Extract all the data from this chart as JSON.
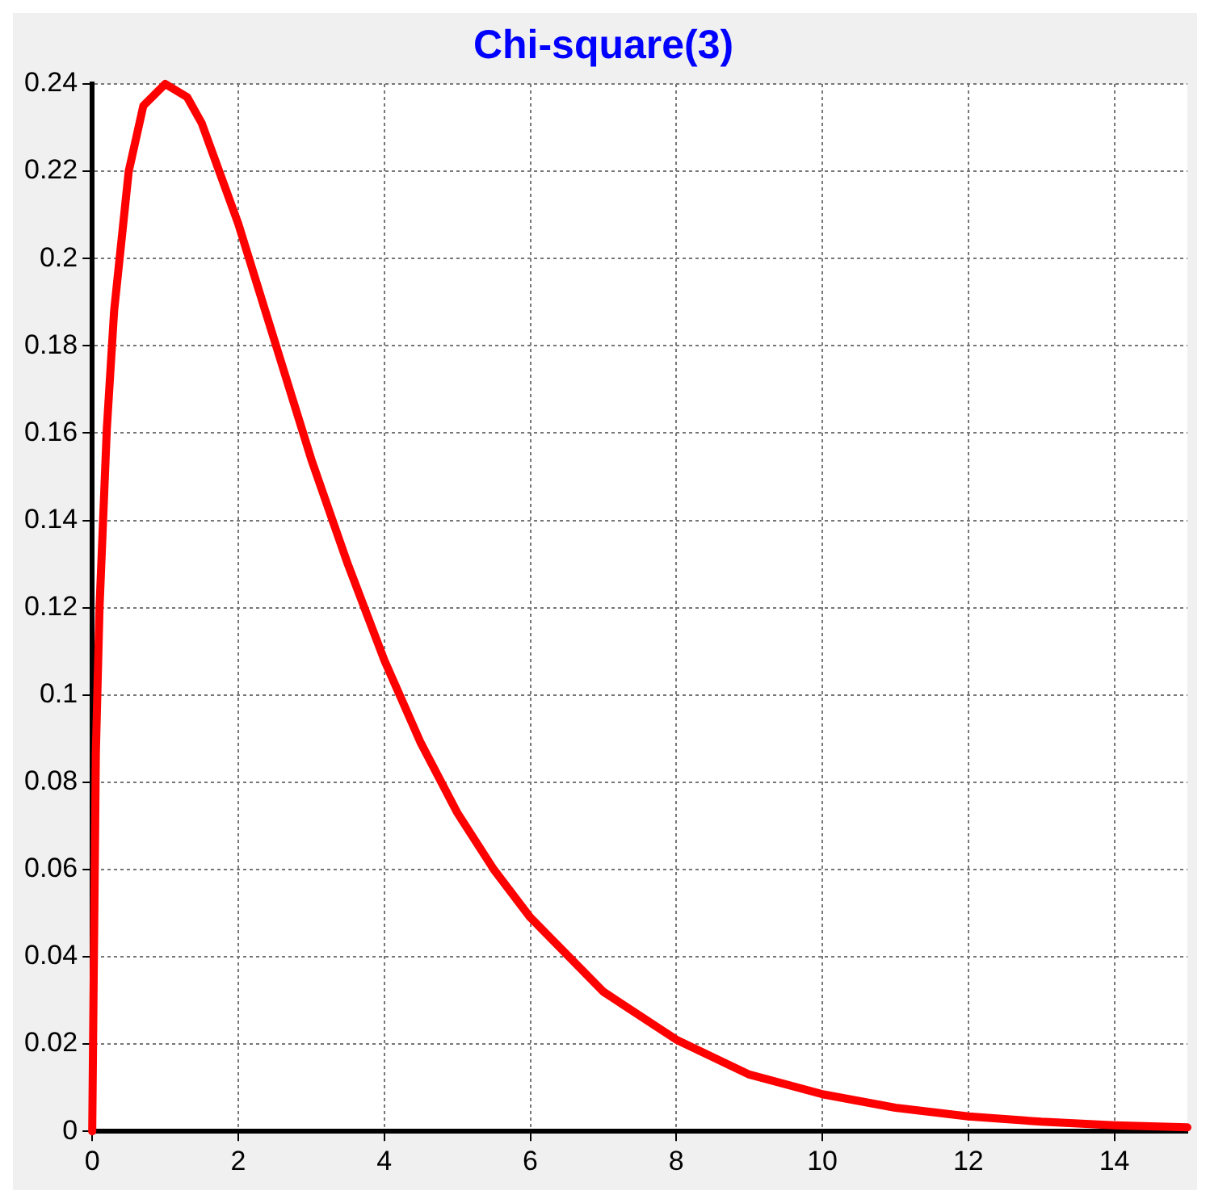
{
  "chart_data": {
    "type": "line",
    "title": "Chi-square(3)",
    "x": [
      0,
      0.05,
      0.1,
      0.2,
      0.3,
      0.5,
      0.7,
      1,
      1.3,
      1.5,
      2,
      2.5,
      3,
      3.5,
      4,
      4.5,
      5,
      5.5,
      6,
      7,
      8,
      9,
      10,
      11,
      12,
      13,
      14,
      15
    ],
    "series": [
      {
        "color": "#ff0000",
        "values": [
          0,
          0.087,
          0.12,
          0.161,
          0.188,
          0.22,
          0.235,
          0.24,
          0.237,
          0.231,
          0.208,
          0.181,
          0.154,
          0.13,
          0.108,
          0.089,
          0.073,
          0.06,
          0.049,
          0.032,
          0.021,
          0.013,
          0.0085,
          0.0054,
          0.0034,
          0.0022,
          0.0014,
          0.0009
        ]
      }
    ],
    "xlim": [
      0,
      15
    ],
    "xticks": [
      0,
      2,
      4,
      6,
      8,
      10,
      12,
      14
    ],
    "ylim": [
      0,
      0.24
    ],
    "yticks": [
      0,
      0.02,
      0.04,
      0.06,
      0.08,
      0.1,
      0.12,
      0.14,
      0.16,
      0.18,
      0.2,
      0.22,
      0.24
    ],
    "grid": true,
    "legend": false,
    "marker": "none",
    "line_style": "solid"
  }
}
